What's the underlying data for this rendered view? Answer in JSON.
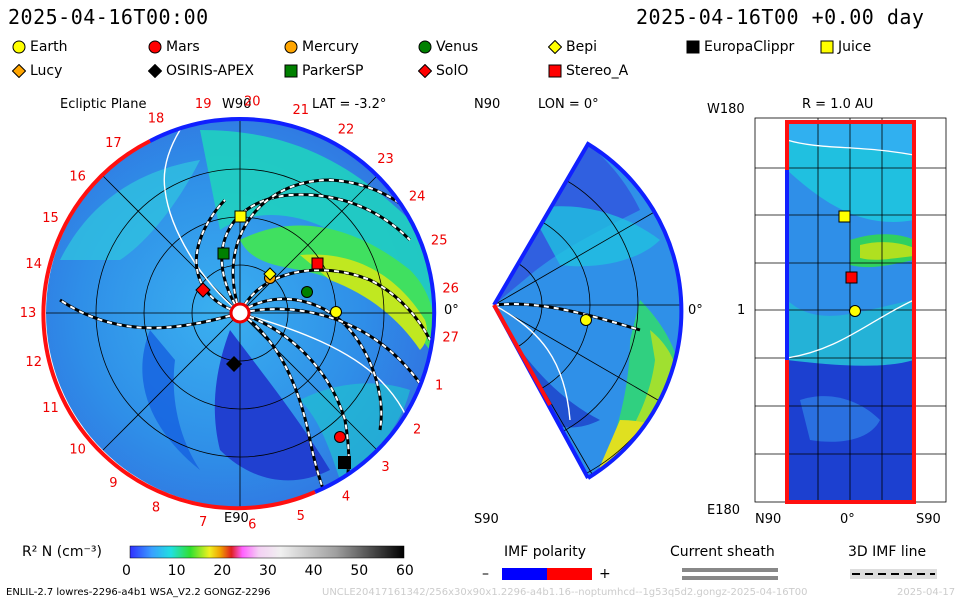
{
  "header": {
    "date_left": "2025-04-16T00:00",
    "date_right": "2025-04-16T00 +0.00 day"
  },
  "legend": [
    {
      "label": "Earth",
      "shape": "circle",
      "color": "#ffff00"
    },
    {
      "label": "Mars",
      "shape": "circle",
      "color": "#ff0000"
    },
    {
      "label": "Mercury",
      "shape": "circle",
      "color": "#ffa500"
    },
    {
      "label": "Venus",
      "shape": "circle",
      "color": "#008000"
    },
    {
      "label": "Bepi",
      "shape": "diamond",
      "color": "#ffff00"
    },
    {
      "label": "EuropaClippr",
      "shape": "square",
      "color": "#000000"
    },
    {
      "label": "Juice",
      "shape": "square",
      "color": "#ffff00"
    },
    {
      "label": "Lucy",
      "shape": "diamond",
      "color": "#ffa500"
    },
    {
      "label": "OSIRIS-APEX",
      "shape": "diamond",
      "color": "#000000"
    },
    {
      "label": "ParkerSP",
      "shape": "square",
      "color": "#008000"
    },
    {
      "label": "SolO",
      "shape": "diamond",
      "color": "#ff0000"
    },
    {
      "label": "Stereo_A",
      "shape": "square",
      "color": "#ff0000"
    }
  ],
  "panels": {
    "ecliptic": {
      "title": "Ecliptic Plane",
      "lat_label": "LAT = -3.2°",
      "top_label": "W90",
      "bottom_label": "E90",
      "right_label": "0°",
      "carrington": [
        "19",
        "20",
        "21",
        "22",
        "23",
        "24",
        "25",
        "26",
        "27",
        "1",
        "2",
        "3",
        "4",
        "5",
        "6",
        "7",
        "8",
        "9",
        "10",
        "11",
        "12",
        "13",
        "14",
        "15",
        "16",
        "17",
        "18"
      ]
    },
    "meridional": {
      "lon_label": "LON = 0°",
      "top_label": "N90",
      "bottom_label": "S90",
      "right_label": "0°"
    },
    "radial": {
      "r_label": "R = 1.0 AU",
      "top_label": "W180",
      "bottom_label": "E180",
      "mid_label": "1",
      "x_labels": [
        "N90",
        "0°",
        "S90"
      ]
    }
  },
  "colorbar": {
    "label": "R² N (cm⁻³)",
    "ticks": [
      "0",
      "10",
      "20",
      "30",
      "40",
      "50",
      "60"
    ]
  },
  "imf": {
    "title": "IMF polarity",
    "minus": "–",
    "plus": "+",
    "colors": {
      "negative": "#0000ff",
      "positive": "#ff0000"
    }
  },
  "current_sheath": {
    "title": "Current sheath"
  },
  "imf_line": {
    "title": "3D IMF line"
  },
  "footer": {
    "left": "ENLIL-2.7 lowres-2296-a4b1 WSA_V2.2 GONGZ-2296",
    "middle": "UNCLE20417161342/256x30x90x1.2296-a4b1.16--noptumhcd--1g53q5d2.gongz-2025-04-16T00",
    "right": "2025-04-17"
  }
}
